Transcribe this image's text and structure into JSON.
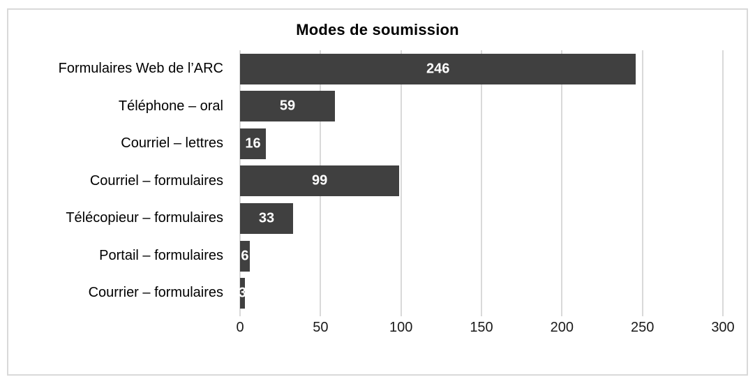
{
  "chart_data": {
    "type": "bar",
    "orientation": "horizontal",
    "title": "Modes de soumission",
    "categories": [
      "Formulaires Web de l’ARC",
      "Téléphone – oral",
      "Courriel – lettres",
      "Courriel – formulaires",
      "Télécopieur – formulaires",
      "Portail – formulaires",
      "Courrier – formulaires"
    ],
    "values": [
      246,
      59,
      16,
      99,
      33,
      6,
      3
    ],
    "value_labels": [
      "246",
      "59",
      "16",
      "99",
      "33",
      "6",
      "3"
    ],
    "xlabel": "",
    "ylabel": "",
    "xlim": [
      0,
      300
    ],
    "xticks": [
      0,
      50,
      100,
      150,
      200,
      250,
      300
    ],
    "grid": "vertical-only",
    "legend_position": "none",
    "colors": {
      "bar": "#404040",
      "value_label": "#ffffff",
      "gridline": "#d9d9d9",
      "frame_border": "#d9d9d9",
      "title_text": "#000000",
      "axis_text": "#1a1a1a",
      "background": "#ffffff"
    }
  }
}
